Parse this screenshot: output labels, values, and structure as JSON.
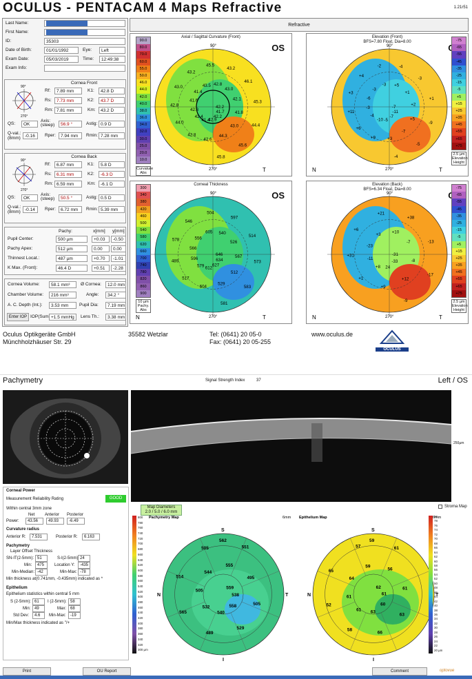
{
  "pentacam": {
    "title": "OCULUS  -  PENTACAM  4 Maps Refractive",
    "version": "1.21r51",
    "patient": {
      "last_name_label": "Last Name:",
      "first_name_label": "First Name:",
      "id_label": "ID:",
      "id": "35303",
      "dob_label": "Date of Birth:",
      "dob": "01/01/1992",
      "eye_label": "Eye:",
      "eye": "Left",
      "exam_date_label": "Exam Date:",
      "exam_date": "05/03/2019",
      "time_label": "Time:",
      "time": "12:49:38",
      "exam_info_label": "Exam Info:"
    },
    "front": {
      "title": "Cornea Front",
      "rf_label": "Rf:",
      "rf": "7.89 mm",
      "k1_label": "K1:",
      "k1": "42.8 D",
      "rs_label": "Rs:",
      "rs": "7.73 mm",
      "k2_label": "K2:",
      "k2": "43.7 D",
      "rm_label": "Rm:",
      "rm": "7.81 mm",
      "km_label": "Km:",
      "km": "43.2 D",
      "qs_label": "QS:",
      "qs": "OK",
      "axis_label": "Axis: (steep)",
      "axis": "56.9 °",
      "astig_label": "Astig:",
      "astig": "0.9 D",
      "qval_label": "Q-val.: (8mm)",
      "qval": "-0.16",
      "rper_label": "Rper:",
      "rper": "7.94 mm",
      "rmin_label": "Rmin:",
      "rmin": "7.28 mm"
    },
    "back": {
      "title": "Cornea Back",
      "rf_label": "Rf:",
      "rf": "6.87 mm",
      "k1_label": "K1:",
      "k1": "5.8 D",
      "rs_label": "Rs:",
      "rs": "6.31 mm",
      "k2_label": "K2:",
      "k2": "-6.3 D",
      "rm_label": "Rm:",
      "rm": "6.59 mm",
      "km_label": "Km:",
      "km": "-6.1 D",
      "qs_label": "QS:",
      "qs": "OK",
      "axis_label": "Axis: (steep)",
      "axis": "50.5 °",
      "astig_label": "Astig:",
      "astig": "0.5 D",
      "qval_label": "Q-val.: (8mm)",
      "qval": "-0.14",
      "rper_label": "Rper:",
      "rper": "6.72 mm",
      "rmin_label": "Rmin:",
      "rmin": "5.39 mm"
    },
    "pachy": {
      "pachy_label": "Pachy:",
      "x_label": "x[mm]",
      "y_label": "y[mm]",
      "pupil_label": "Pupil Center:",
      "pupil": "500 µm",
      "pupil_x": "+0.03",
      "pupil_y": "-0.50",
      "apex_label": "Pachy Apex:",
      "apex": "512 µm",
      "apex_x": "0.00",
      "apex_y": "0.00",
      "thin_label": "Thinnest Locat.:",
      "thin": "487 µm",
      "thin_x": "+0.70",
      "thin_y": "-1.01",
      "kmax_label": "K Max. (Front):",
      "kmax": "46.4 D",
      "kmax_x": "+0.51",
      "kmax_y": "-2.28"
    },
    "vol": {
      "cv_label": "Cornea Volume:",
      "cv": "58.1 mm³",
      "cd_label": "Ø Cornea:",
      "cd": "12.0 mm",
      "chv_label": "Chamber Volume:",
      "chv": "216 mm³",
      "angle_label": "Angle:",
      "angle": "34.2 °",
      "acd_label": "A. C. Depth (Int.):",
      "acd": "3.53 mm",
      "pupil_label": "Pupil Dia:",
      "pupil": "7.19 mm",
      "iop_btn": "Enter IOP",
      "iop_label": "IOP(Sum):",
      "iop": "+1.5 mmHg",
      "lens_label": "Lens Th.:",
      "lens": "3.38 mm"
    },
    "refractive": "Refractive",
    "maps": [
      {
        "title": "Axial / Sagittal Curvature (Front)",
        "sub": "",
        "eye": "OS",
        "scale": [
          "90.0",
          "80.0",
          "70.0",
          "60.0",
          "55.0",
          "50.0",
          "46.0",
          "44.0",
          "42.0",
          "40.0",
          "38.0",
          "36.0",
          "34.0",
          "32.0",
          "30.0",
          "25.0",
          "20.0",
          "10.0"
        ],
        "scale_colors": [
          "#b4a6c8",
          "#c0508a",
          "#d03030",
          "#e05020",
          "#f08018",
          "#f8b020",
          "#f8e020",
          "#d8f020",
          "#80e040",
          "#40d070",
          "#30c0b0",
          "#3090e0",
          "#3060d0",
          "#4040c0",
          "#6040b0",
          "#8050a8",
          "#9060b0",
          "#a080c0"
        ],
        "bottom1": "Curvature",
        "bottom2": "Abs",
        "values": [
          "42.2",
          "41.7",
          "42.2",
          "42.9",
          "41.4",
          "42.4",
          "42.3",
          "41.6",
          "41.4",
          "43.5",
          "42.8",
          "43.0",
          "42.1",
          "41.8",
          "43.0",
          "44.3",
          "42.6",
          "42.8",
          "44.0",
          "42.8",
          "43.0",
          "43.2",
          "45.5",
          "43.2",
          "46.1",
          "45.3",
          "44.4",
          "45.6",
          "45.8"
        ],
        "n": "N",
        "t": "T"
      },
      {
        "title": "Elevation (Front)",
        "sub": "BFS=7.80 Float, Dia=8.00",
        "eye": "OS",
        "scale": [
          "-75",
          "-65",
          "-55",
          "-45",
          "-35",
          "-25",
          "-15",
          "-5",
          "+5",
          "+15",
          "+25",
          "+35",
          "+45",
          "+55",
          "+65",
          "+75"
        ],
        "scale_colors": [
          "#d080d0",
          "#b060c0",
          "#6040c0",
          "#3050d0",
          "#3090e0",
          "#30b0e0",
          "#40d0e0",
          "#60e0c0",
          "#a0f060",
          "#f0f040",
          "#f8c830",
          "#f8a020",
          "#f07020",
          "#e04020",
          "#c02020",
          "#a01010"
        ],
        "bottom1": "2.5 µm",
        "bottom2": "Elevation",
        "bottom3": "Height",
        "values": [
          "-7",
          "-11",
          "-7",
          "-5",
          "-10",
          "-4",
          "-3",
          "-6",
          "-3",
          "-3",
          "+5",
          "+1",
          "+2",
          "+5",
          "-7",
          "+3",
          "+9",
          "+6",
          "+11",
          "+3",
          "+4",
          "-2",
          "-4",
          "-3",
          "+1",
          "-9",
          "-5",
          "-4"
        ],
        "n": "N",
        "t": "T"
      },
      {
        "title": "Corneal Thickness",
        "sub": "",
        "eye": "OS",
        "scale": [
          "300",
          "340",
          "380",
          "420",
          "460",
          "500",
          "540",
          "580",
          "620",
          "660",
          "700",
          "740",
          "780",
          "820",
          "860",
          "900"
        ],
        "scale_colors": [
          "#f0a0b0",
          "#e05050",
          "#e06030",
          "#f0a020",
          "#f8d020",
          "#d0f030",
          "#80e040",
          "#40d070",
          "#30c0b0",
          "#3090e0",
          "#3060d0",
          "#3040b0",
          "#6040b0",
          "#8050a8",
          "#9060b0",
          "#a080c0"
        ],
        "bottom1": "10 µm",
        "bottom2": "Pachy.",
        "bottom3": "Abs",
        "values": [
          "646",
          "634",
          "627",
          "612",
          "579",
          "596",
          "566",
          "556",
          "605",
          "540",
          "526",
          "567",
          "512",
          "529",
          "604",
          "517",
          "489",
          "578",
          "546",
          "504",
          "597",
          "514",
          "573",
          "583",
          "581"
        ],
        "n": "N",
        "t": "T"
      },
      {
        "title": "Elevation (Back)",
        "sub": "BFS=6.34 Float, Dia=8.00",
        "eye": "OS",
        "scale": [
          "-75",
          "-65",
          "-55",
          "-45",
          "-35",
          "-25",
          "-15",
          "-5",
          "+5",
          "+15",
          "+25",
          "+35",
          "+45",
          "+55",
          "+65",
          "+75"
        ],
        "scale_colors": [
          "#d080d0",
          "#b060c0",
          "#6040c0",
          "#3050d0",
          "#3090e0",
          "#30b0e0",
          "#40d0e0",
          "#60e0c0",
          "#a0f060",
          "#f0f040",
          "#f8c830",
          "#f8a020",
          "#f07020",
          "#e04020",
          "#c02020",
          "#a01010"
        ],
        "bottom1": "2.5 µm",
        "bottom2": "Elevation",
        "bottom3": "Height",
        "values": [
          "-31",
          "-33",
          "24",
          "+8",
          "-11",
          "-23",
          "+3",
          "+10",
          "-7",
          "-8",
          "+12",
          "+9",
          "+1",
          "+31",
          "+6",
          "+21",
          "+38",
          "-13",
          "-17",
          "-9"
        ],
        "n": "N",
        "t": "T"
      }
    ],
    "footer": {
      "company": "Oculus Optikgeräte GmbH",
      "street": "Münchholzhäuser Str. 29",
      "city": "35582 Wetzlar",
      "tel": "Tel:  (0641) 20 05-0",
      "fax": "Fax: (0641) 20 05-255",
      "web": "www.oculus.de",
      "logo": "OCULUS"
    }
  },
  "oct": {
    "title": "Pachymetry",
    "ssi_label": "Signal Strength Index",
    "ssi": "37",
    "eye": "Left / OS",
    "scan_scale": "250µm",
    "corneal_power": {
      "title": "Corneal Power",
      "reliability_label": "Measurement Reliability Rating",
      "reliability": "GOOD",
      "zone": "Within central 3mm zone",
      "net_h": "Net",
      "ant_h": "Anterior",
      "post_h": "Posterior",
      "power_label": "Power:",
      "net": "43.56",
      "anterior": "49.93",
      "posterior": "-6.49"
    },
    "curvature": {
      "title": "Curvature radius",
      "ant_label": "Anterior R:",
      "ant": "7.531",
      "post_label": "Posterior R:",
      "post": "6.163"
    },
    "pachymetry": {
      "title": "Pachymetry",
      "header": "Layer  Offset  Thickness",
      "snit_label": "SN-IT(2-5mm):",
      "snit": "51",
      "si_label": "S-I(2-5mm):",
      "si": "24",
      "min_label": "Min:",
      "min": "475",
      "locy_label": "Location Y:",
      "locy": "-435",
      "minmed_label": "Min-Median:",
      "minmed": "-42",
      "minmax_label": "Min-Max:",
      "minmax": "-78",
      "note": "Min thickness at(0.741mm, -0.435mm) indicated as *"
    },
    "epithelium": {
      "title": "Epithelium",
      "stats": "Epithelium statistics within central 5 mm",
      "s_label": "S (2-5mm):",
      "s": "61",
      "i_label": "I (2-5mm):",
      "i": "58",
      "min_label": "Min:",
      "min": "49",
      "max_label": "Max:",
      "max": "68",
      "std_label": "Std Dev:",
      "std": "4.6",
      "minmax_label": "Min-Max:",
      "minmax": "-19",
      "note": "Min/Max thickness indicated as \"/+"
    },
    "map_diam_label": "Map Diameters",
    "map_diam": "2.0 / 5.0 / 6.0 mm",
    "stroma_label": "Stroma Map",
    "pachy_map": {
      "title": "Pachymetry Map",
      "mm": "6mm",
      "values": [
        "562",
        "559",
        "538",
        "558",
        "540",
        "532",
        "505",
        "544",
        "555",
        "495",
        "505",
        "529",
        "489",
        "565",
        "514",
        "505",
        "551"
      ],
      "s": "S",
      "i": "I",
      "n": "N",
      "t": "T",
      "scale": [
        "800",
        "780",
        "760",
        "740",
        "720",
        "700",
        "680",
        "660",
        "640",
        "620",
        "600",
        "580",
        "560",
        "540",
        "520",
        "500",
        "480",
        "460",
        "440",
        "420",
        "400",
        "380",
        "360",
        "340",
        "320",
        "300 µm"
      ]
    },
    "epi_map": {
      "title": "Epithelium Map",
      "mm": "6mm",
      "values": [
        "59",
        "62",
        "61",
        "60",
        "63",
        "61",
        "61",
        "64",
        "59",
        "56",
        "61",
        "63",
        "66",
        "58",
        "52",
        "65",
        "57",
        "61"
      ],
      "s": "S",
      "i": "I",
      "n": "N",
      "t": "T",
      "scale": [
        "80",
        "78",
        "76",
        "74",
        "72",
        "70",
        "68",
        "66",
        "64",
        "62",
        "60",
        "58",
        "56",
        "54",
        "52",
        "50",
        "48",
        "46",
        "44",
        "42",
        "40",
        "38",
        "36",
        "34",
        "32",
        "30",
        "28",
        "26",
        "24",
        "22",
        "20 µm"
      ]
    },
    "buttons": {
      "print": "Print",
      "oct_report": "OU Report",
      "comment": "Comment"
    },
    "taskbar_time": "2:55 PM",
    "logo": "optovue"
  }
}
